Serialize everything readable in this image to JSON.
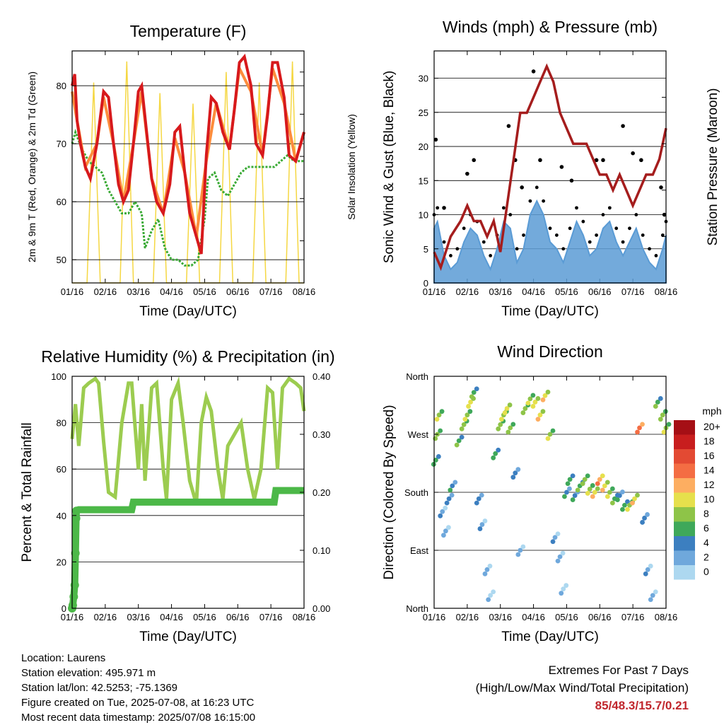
{
  "colors": {
    "temp_2m": "#d7191c",
    "temp_9m": "#fd8d3c",
    "dewpoint": "#3aaa35",
    "solar": "#f5d742",
    "wind": "#5a9bd5",
    "gust": "#000000",
    "pressure": "#a51d1d",
    "rh": "#9ccc50",
    "precip": "#4cb848",
    "extremes_values": "#c0272d"
  },
  "chart_data": [
    {
      "type": "line",
      "title": "Temperature (F)",
      "xlabel": "Time (Day/UTC)",
      "ylabel_left": "2m & 9m T (Red, Orange) & 2m Td (Green)",
      "ylabel_right": "Solar Insolation (Yellow)",
      "x_ticks": [
        "01/16",
        "02/16",
        "03/16",
        "04/16",
        "05/16",
        "06/16",
        "07/16",
        "08/16"
      ],
      "x_range_days": [
        0,
        7
      ],
      "ylim_left": [
        46,
        86
      ],
      "yticks_left": [
        50,
        60,
        70,
        80
      ],
      "ylim_right": [
        0,
        1100
      ],
      "yticks_right": [
        0,
        200,
        400,
        600,
        800,
        1000
      ],
      "series": [
        {
          "name": "2m T",
          "x": [
            0,
            0.08,
            0.15,
            0.25,
            0.4,
            0.55,
            0.75,
            0.95,
            1.1,
            1.25,
            1.4,
            1.55,
            1.7,
            1.85,
            2.0,
            2.1,
            2.25,
            2.4,
            2.55,
            2.75,
            2.95,
            3.1,
            3.25,
            3.4,
            3.55,
            3.75,
            3.9,
            4.05,
            4.2,
            4.35,
            4.55,
            4.75,
            4.9,
            5.05,
            5.2,
            5.4,
            5.55,
            5.75,
            5.9,
            6.05,
            6.2,
            6.4,
            6.55,
            6.75,
            6.9,
            7.0
          ],
          "values": [
            80,
            82,
            74,
            70,
            66,
            64,
            70,
            79,
            78,
            70,
            63,
            60,
            62,
            70,
            79,
            80,
            72,
            64,
            60,
            58,
            63,
            72,
            73,
            65,
            58,
            54,
            51,
            68,
            78,
            77,
            72,
            69,
            76,
            84,
            85,
            80,
            70,
            68,
            75,
            84,
            84,
            78,
            68,
            67,
            70,
            72
          ]
        },
        {
          "name": "9m T",
          "x": [
            0,
            0.15,
            0.4,
            0.75,
            0.95,
            1.25,
            1.55,
            1.85,
            2.1,
            2.4,
            2.75,
            3.1,
            3.4,
            3.75,
            4.05,
            4.35,
            4.75,
            5.05,
            5.4,
            5.75,
            6.05,
            6.4,
            6.75,
            7.0
          ],
          "values": [
            79,
            74,
            66,
            70,
            78,
            70,
            60,
            70,
            79,
            64,
            58,
            71,
            65,
            54,
            67,
            77,
            69,
            83,
            79,
            68,
            83,
            77,
            67,
            72
          ]
        },
        {
          "name": "2m Td",
          "x": [
            0,
            0.1,
            0.3,
            0.5,
            0.7,
            0.9,
            1.1,
            1.3,
            1.5,
            1.7,
            1.9,
            2.1,
            2.2,
            2.4,
            2.6,
            2.8,
            3.0,
            3.2,
            3.4,
            3.6,
            3.8,
            4.0,
            4.1,
            4.3,
            4.5,
            4.7,
            4.9,
            5.1,
            5.3,
            5.5,
            5.7,
            5.9,
            6.1,
            6.3,
            6.5,
            6.7,
            6.9,
            7.0
          ],
          "values": [
            70,
            72,
            69,
            67,
            66,
            65,
            62,
            60,
            58,
            58,
            60,
            58,
            52,
            55,
            57,
            52,
            50,
            50,
            49,
            49,
            50,
            57,
            64,
            65,
            62,
            61,
            63,
            65,
            66,
            66,
            66,
            66,
            66,
            67,
            68,
            67,
            67,
            67
          ]
        },
        {
          "name": "Solar Insolation",
          "x": [
            0,
            0.45,
            0.65,
            0.85,
            1.45,
            1.65,
            1.85,
            2.45,
            2.65,
            2.85,
            3.45,
            3.65,
            3.85,
            4.45,
            4.65,
            4.85,
            5.45,
            5.65,
            5.85,
            6.45,
            6.65,
            6.85,
            7.0
          ],
          "values": [
            0,
            0,
            950,
            0,
            0,
            1050,
            0,
            0,
            900,
            0,
            0,
            850,
            0,
            0,
            1000,
            0,
            0,
            950,
            0,
            0,
            1050,
            0,
            0
          ]
        }
      ]
    },
    {
      "type": "scatter",
      "title": "Winds (mph) & Pressure (mb)",
      "xlabel": "Time (Day/UTC)",
      "ylabel_left": "Sonic Wind & Gust (Blue, Black)",
      "ylabel_right": "Station Pressure (Maroon)",
      "x_ticks": [
        "01/16",
        "02/16",
        "03/16",
        "04/16",
        "05/16",
        "06/16",
        "07/16",
        "08/16"
      ],
      "x_range_days": [
        0,
        7
      ],
      "ylim_left": [
        0,
        34
      ],
      "yticks_left": [
        0,
        5,
        10,
        15,
        20,
        25,
        30
      ],
      "ylim_right": [
        951,
        966
      ],
      "yticks_right": [
        951,
        954,
        957,
        960,
        963,
        966
      ],
      "series": [
        {
          "name": "Station Pressure",
          "x": [
            0,
            0.2,
            0.5,
            0.8,
            1.0,
            1.2,
            1.4,
            1.6,
            1.8,
            2.0,
            2.2,
            2.4,
            2.6,
            2.8,
            3.0,
            3.2,
            3.4,
            3.6,
            3.8,
            4.0,
            4.2,
            4.4,
            4.6,
            4.8,
            5.0,
            5.2,
            5.4,
            5.6,
            5.8,
            6.0,
            6.2,
            6.4,
            6.6,
            6.8,
            7.0
          ],
          "values": [
            953,
            952,
            954,
            955,
            956,
            955,
            955,
            954,
            955,
            953,
            956,
            959,
            962,
            962,
            963,
            964,
            965,
            964,
            962,
            961,
            960,
            960,
            960,
            959,
            958,
            958,
            957,
            958,
            957,
            956,
            957,
            958,
            958,
            959,
            961
          ]
        },
        {
          "name": "Sonic Wind",
          "x": [
            0,
            0.1,
            0.3,
            0.5,
            0.7,
            0.9,
            1.1,
            1.3,
            1.5,
            1.7,
            1.9,
            2.1,
            2.3,
            2.5,
            2.7,
            2.9,
            3.1,
            3.3,
            3.5,
            3.7,
            3.9,
            4.1,
            4.3,
            4.5,
            4.7,
            4.9,
            5.1,
            5.3,
            5.5,
            5.7,
            5.9,
            6.1,
            6.3,
            6.5,
            6.7,
            6.9,
            7.0
          ],
          "values": [
            8,
            9,
            4,
            2,
            3,
            6,
            8,
            7,
            4,
            2,
            5,
            9,
            8,
            3,
            5,
            10,
            12,
            10,
            6,
            5,
            3,
            6,
            9,
            7,
            4,
            5,
            8,
            9,
            6,
            4,
            6,
            8,
            5,
            3,
            2,
            5,
            7
          ]
        },
        {
          "name": "Gust",
          "x": [
            0.05,
            0.3,
            1.0,
            1.2,
            2.25,
            2.45,
            2.65,
            3.0,
            3.2,
            3.85,
            4.15,
            4.9,
            5.1,
            5.7,
            6.0,
            6.25,
            6.85,
            6.95
          ],
          "values": [
            21,
            11,
            16,
            18,
            23,
            18,
            14,
            31,
            18,
            17,
            15,
            18,
            18,
            23,
            19,
            18,
            14,
            10
          ]
        }
      ]
    },
    {
      "type": "line",
      "title": "Relative Humidity (%) & Precipitation (in)",
      "xlabel": "Time (Day/UTC)",
      "ylabel_left": "Percent & Total Rainfall",
      "x_ticks": [
        "01/16",
        "02/16",
        "03/16",
        "04/16",
        "05/16",
        "06/16",
        "07/16",
        "08/16"
      ],
      "x_range_days": [
        0,
        7
      ],
      "ylim_left": [
        0,
        100
      ],
      "yticks_left": [
        0,
        20,
        40,
        60,
        80,
        100
      ],
      "ylim_right": [
        0,
        0.4
      ],
      "yticks_right": [
        "0.00",
        "0.10",
        "0.20",
        "0.30",
        "0.40"
      ],
      "series": [
        {
          "name": "Relative Humidity",
          "x": [
            0,
            0.1,
            0.2,
            0.35,
            0.5,
            0.7,
            0.8,
            0.95,
            1.1,
            1.3,
            1.5,
            1.7,
            1.8,
            2.0,
            2.1,
            2.2,
            2.4,
            2.55,
            2.75,
            2.85,
            3.0,
            3.2,
            3.35,
            3.55,
            3.75,
            3.9,
            4.05,
            4.2,
            4.4,
            4.55,
            4.7,
            4.9,
            5.1,
            5.3,
            5.5,
            5.7,
            5.9,
            6.05,
            6.2,
            6.35,
            6.55,
            6.75,
            6.9,
            7.0
          ],
          "values": [
            73,
            88,
            70,
            95,
            97,
            99,
            97,
            72,
            50,
            48,
            80,
            97,
            97,
            60,
            88,
            55,
            95,
            97,
            60,
            47,
            90,
            97,
            80,
            55,
            45,
            80,
            91,
            85,
            60,
            47,
            70,
            75,
            80,
            60,
            47,
            60,
            95,
            93,
            60,
            95,
            99,
            97,
            95,
            85
          ]
        },
        {
          "name": "Total Precipitation",
          "x": [
            0,
            0.02,
            0.05,
            0.08,
            0.1,
            0.12,
            0.13,
            0.2,
            0.5,
            1.0,
            1.5,
            1.8,
            1.85,
            2.5,
            3.0,
            4.0,
            5.0,
            5.5,
            6.0,
            6.1,
            6.15,
            6.5,
            7.0
          ],
          "values": [
            0,
            0.005,
            0.02,
            0.04,
            0.095,
            0.155,
            0.168,
            0.17,
            0.17,
            0.17,
            0.17,
            0.17,
            0.183,
            0.183,
            0.183,
            0.183,
            0.183,
            0.183,
            0.183,
            0.183,
            0.203,
            0.203,
            0.203
          ]
        }
      ]
    },
    {
      "type": "scatter",
      "title": "Wind Direction",
      "xlabel": "Time (Day/UTC)",
      "ylabel": "Direction (Colored By Speed)",
      "x_ticks": [
        "01/16",
        "02/16",
        "03/16",
        "04/16",
        "05/16",
        "06/16",
        "07/16",
        "08/16"
      ],
      "x_range_days": [
        0,
        7
      ],
      "ylim": [
        0,
        360
      ],
      "yticks": [
        "North",
        "East",
        "South",
        "West",
        "North"
      ],
      "colorbar": {
        "title": "mph",
        "labels": [
          "20+",
          "18",
          "16",
          "14",
          "12",
          "10",
          "8",
          "6",
          "4",
          "2",
          "0"
        ],
        "colors": [
          "#a50f15",
          "#c81e1e",
          "#e34a33",
          "#f46d43",
          "#fdae61",
          "#e6e04c",
          "#8ec448",
          "#3fa85a",
          "#3c7fc0",
          "#6fa8dc",
          "#add8f0"
        ]
      },
      "series": [
        {
          "name": "Wind Direction",
          "x": [
            0.05,
            0.1,
            0.15,
            0.25,
            0.35,
            0.45,
            0.55,
            0.75,
            0.9,
            1.0,
            1.1,
            1.2,
            1.35,
            1.45,
            1.6,
            1.7,
            1.85,
            2.0,
            2.1,
            2.2,
            2.3,
            2.45,
            2.6,
            2.75,
            2.9,
            3.05,
            3.2,
            3.35,
            3.5,
            3.65,
            3.8,
            3.9,
            4.0,
            4.1,
            4.25,
            4.4,
            4.55,
            4.7,
            4.85,
            5.0,
            5.15,
            5.3,
            5.45,
            5.6,
            5.75,
            5.9,
            6.05,
            6.2,
            6.35,
            6.45,
            6.6,
            6.75,
            6.9,
            7.0
          ],
          "values": [
            230,
            270,
            300,
            150,
            120,
            170,
            190,
            260,
            285,
            300,
            320,
            335,
            170,
            130,
            60,
            20,
            240,
            285,
            300,
            310,
            280,
            210,
            90,
            310,
            325,
            320,
            300,
            330,
            270,
            110,
            80,
            30,
            180,
            200,
            175,
            190,
            200,
            185,
            180,
            200,
            190,
            180,
            170,
            175,
            160,
            160,
            170,
            280,
            140,
            60,
            20,
            320,
            300,
            280
          ],
          "speeds": [
            5,
            7,
            8,
            2,
            1,
            3,
            4,
            6,
            7,
            8,
            9,
            6,
            3,
            2,
            1,
            0,
            5,
            7,
            8,
            9,
            7,
            3,
            1,
            7,
            8,
            9,
            10,
            10,
            8,
            2,
            1,
            0,
            4,
            5,
            4,
            6,
            7,
            8,
            10,
            12,
            10,
            8,
            6,
            4,
            5,
            8,
            10,
            13,
            3,
            2,
            1,
            6,
            7,
            8
          ]
        }
      ]
    }
  ],
  "info": {
    "location": "Location: Laurens",
    "elevation": "Station elevation: 495.971 m",
    "latlon": "Station lat/lon: 42.5253; -75.1369",
    "created": "Figure created on Tue, 2025-07-08, at 16:23 UTC",
    "recent": "Most recent data timestamp: 2025/07/08 16:15:00"
  },
  "extremes": {
    "title": "Extremes For Past 7 Days",
    "subtitle": "(High/Low/Max Wind/Total Precipitation)",
    "values": "85/48.3/15.7/0.21"
  }
}
